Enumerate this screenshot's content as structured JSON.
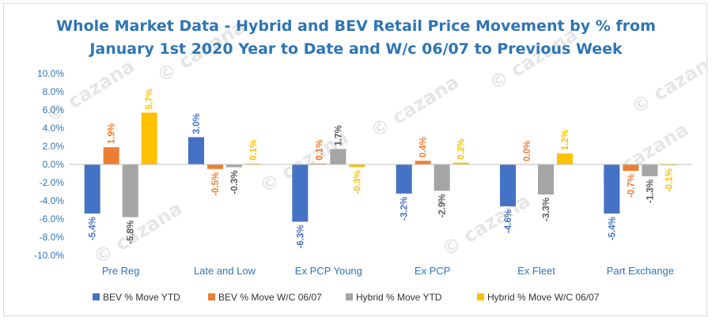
{
  "chart_data": {
    "type": "bar",
    "title_lines": [
      "Whole Market Data - Hybrid and BEV Retail Price Movement by % from",
      "January 1st 2020 Year to Date and W/c 06/07 to Previous Week"
    ],
    "watermark": "cazana",
    "categories": [
      "Pre Reg",
      "Late and Low",
      "Ex PCP Young",
      "Ex PCP",
      "Ex Fleet",
      "Part Exchange"
    ],
    "ylim": [
      -10,
      10
    ],
    "yticks": [
      -10,
      -8,
      -6,
      -4,
      -2,
      0,
      2,
      4,
      6,
      8,
      10
    ],
    "ytick_labels": [
      "-10.0%",
      "-8.0%",
      "-6.0%",
      "-4.0%",
      "-2.0%",
      "0.0%",
      "2.0%",
      "4.0%",
      "6.0%",
      "8.0%",
      "10.0%"
    ],
    "grid": false,
    "legend_position": "bottom",
    "series": [
      {
        "name": "BEV % Move YTD",
        "color": "#4472c4",
        "values": [
          -5.4,
          3.0,
          -6.3,
          -3.2,
          -4.6,
          -5.4
        ],
        "labels": [
          "-5.4%",
          "3.0%",
          "-6.3%",
          "-3.2%",
          "-4.6%",
          "-5.4%"
        ]
      },
      {
        "name": "BEV % Move W/C 06/07",
        "color": "#ed7d31",
        "values": [
          1.9,
          -0.5,
          0.1,
          0.4,
          0.0,
          -0.7
        ],
        "labels": [
          "1.9%",
          "-0.5%",
          "0.1%",
          "0.4%",
          "0.0%",
          "-0.7%"
        ]
      },
      {
        "name": "Hybrid % Move YTD",
        "color": "#a5a5a5",
        "values": [
          -5.8,
          -0.3,
          1.7,
          -2.9,
          -3.3,
          -1.3
        ],
        "labels": [
          "-5.8%",
          "-0.3%",
          "1.7%",
          "-2.9%",
          "-3.3%",
          "-1.3%"
        ]
      },
      {
        "name": "Hybrid % Move W/C 06/07",
        "color": "#ffc000",
        "values": [
          5.7,
          0.1,
          -0.3,
          0.2,
          1.2,
          -0.1
        ],
        "labels": [
          "5.7%",
          "0.1%",
          "-0.3%",
          "0.2%",
          "1.2%",
          "-0.1%"
        ]
      }
    ]
  }
}
